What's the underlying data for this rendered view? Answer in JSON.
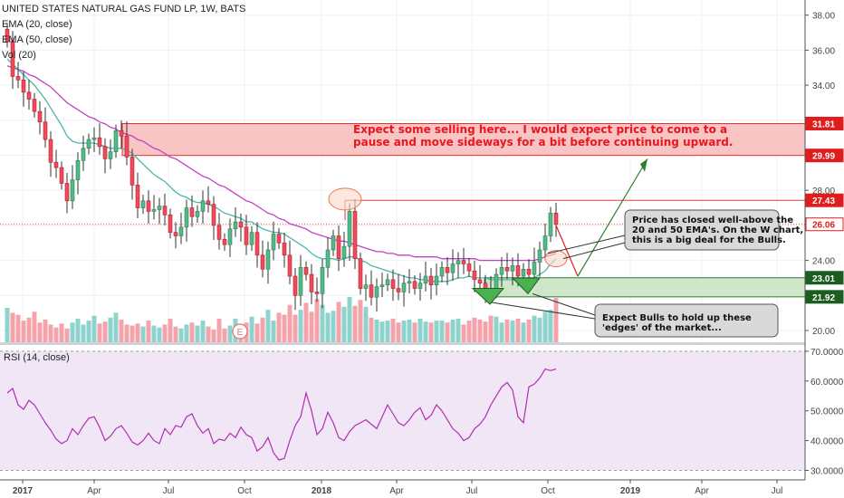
{
  "header": {
    "title": "UNITED STATES NATURAL GAS FUND LP, 1W, BATS",
    "ema20": "EMA (20, close)",
    "ema50": "EMA (50, close)",
    "vol": "Vol (20)"
  },
  "rsi_label": "RSI (14, close)",
  "annotations": {
    "selling_text_1": "Expect some selling here... I would expect price to come to a",
    "selling_text_2": "pause and move sideways for a bit before continuing upward.",
    "closed_text_1": "Price has closed well-above the",
    "closed_text_2": "20 and 50 EMA's. On the W chart,",
    "closed_text_3": "this is a big deal for the Bulls.",
    "bulls_text_1": "Expect Bulls to hold up these",
    "bulls_text_2": "'edges' of the market...",
    "earnings_marker": "E"
  },
  "colors": {
    "up": "#53b987",
    "down": "#eb4d5c",
    "ema20": "#4db6ac",
    "ema50": "#c542c6",
    "rsi_line": "#b02fb0",
    "rsi_bg": "#f1e6f6",
    "resistance_zone": "#f8c4c4",
    "support_zone": "#cfe6c9",
    "marker_red": "#e8161f"
  },
  "chart_data": [
    {
      "type": "candlestick",
      "title": "UNITED STATES NATURAL GAS FUND LP, 1W, BATS",
      "x_tick_labels": [
        "2017",
        "Apr",
        "Jul",
        "Oct",
        "2018",
        "Apr",
        "Jul",
        "Oct",
        "2019",
        "Apr",
        "Jul"
      ],
      "y_tick_labels": [
        "20.00",
        "22.00",
        "24.00",
        "26.00",
        "28.00",
        "30.00",
        "32.00",
        "34.00",
        "36.00",
        "38.00"
      ],
      "ylim": [
        19.3,
        38.6
      ],
      "price_labels": [
        {
          "value": 31.81,
          "label": "31.81"
        },
        {
          "value": 29.99,
          "label": "29.99"
        },
        {
          "value": 27.43,
          "label": "27.43"
        },
        {
          "value": 26.06,
          "label": "26.06"
        },
        {
          "value": 23.01,
          "label": "23.01"
        },
        {
          "value": 21.92,
          "label": "21.92"
        }
      ],
      "resistance_zone": [
        29.99,
        31.81
      ],
      "support_zone": [
        21.92,
        23.01
      ],
      "last_close": 26.06,
      "closes": [
        36.5,
        34.5,
        34.3,
        33.6,
        33.2,
        32.5,
        31.9,
        30.9,
        29.6,
        29.3,
        28.4,
        27.4,
        28.6,
        29.7,
        30.4,
        30.9,
        31.0,
        30.5,
        29.8,
        30.2,
        31.4,
        31.1,
        29.9,
        28.3,
        27.0,
        27.4,
        26.8,
        26.9,
        27.1,
        26.6,
        25.6,
        25.4,
        25.9,
        27.0,
        26.5,
        26.8,
        27.4,
        27.2,
        26.0,
        25.2,
        24.9,
        25.8,
        26.2,
        25.9,
        24.9,
        25.6,
        24.3,
        23.5,
        24.6,
        25.5,
        25.0,
        24.3,
        23.1,
        22.0,
        23.6,
        23.2,
        22.2,
        22.1,
        23.6,
        24.6,
        25.4,
        24.1,
        24.8,
        26.8,
        24.1,
        22.4,
        22.6,
        21.9,
        22.5,
        22.6,
        22.9,
        22.4,
        22.2,
        22.7,
        22.8,
        22.4,
        22.7,
        23.1,
        22.6,
        23.1,
        23.6,
        23.3,
        23.8,
        24.0,
        23.8,
        23.4,
        22.9,
        22.7,
        22.4,
        22.2,
        23.2,
        23.6,
        23.4,
        23.7,
        23.1,
        23.5,
        23.2,
        23.9,
        24.6,
        25.4,
        26.7,
        26.06
      ],
      "ema20": [
        35.5,
        35.2,
        34.9,
        34.6,
        34.3,
        34.0,
        33.6,
        33.2,
        32.7,
        32.2,
        31.7,
        31.1,
        30.8,
        30.7,
        30.7,
        30.7,
        30.7,
        30.6,
        30.5,
        30.4,
        30.4,
        30.4,
        30.3,
        30.1,
        29.8,
        29.5,
        29.2,
        28.9,
        28.7,
        28.5,
        28.2,
        27.9,
        27.7,
        27.6,
        27.4,
        27.3,
        27.3,
        27.2,
        27.1,
        26.9,
        26.7,
        26.6,
        26.5,
        26.4,
        26.2,
        26.2,
        26.0,
        25.8,
        25.7,
        25.6,
        25.6,
        25.5,
        25.3,
        25.1,
        24.9,
        24.7,
        24.4,
        24.2,
        24.1,
        24.1,
        24.1,
        24.0,
        24.1,
        24.2,
        24.2,
        24.0,
        23.9,
        23.7,
        23.6,
        23.5,
        23.4,
        23.3,
        23.2,
        23.1,
        23.0,
        23.0,
        22.9,
        22.9,
        22.8,
        22.8,
        22.8,
        22.8,
        22.9,
        23.0,
        23.0,
        23.1,
        23.0,
        23.0,
        23.0,
        22.9,
        22.9,
        22.9,
        22.9,
        22.9,
        22.9,
        23.0,
        23.0,
        23.0,
        23.2,
        23.4,
        23.8,
        24.1
      ],
      "ema50": [
        35.1,
        35.0,
        34.9,
        34.8,
        34.6,
        34.5,
        34.3,
        34.1,
        33.9,
        33.6,
        33.3,
        33.0,
        32.8,
        32.6,
        32.4,
        32.2,
        32.1,
        31.9,
        31.8,
        31.6,
        31.5,
        31.3,
        31.2,
        31.1,
        30.9,
        30.8,
        30.6,
        30.4,
        30.3,
        30.1,
        29.9,
        29.8,
        29.6,
        29.4,
        29.2,
        29.0,
        28.8,
        28.7,
        28.5,
        28.3,
        28.2,
        28.0,
        27.8,
        27.6,
        27.4,
        27.3,
        27.1,
        26.9,
        26.7,
        26.6,
        26.4,
        26.3,
        26.1,
        26.0,
        25.9,
        25.8,
        25.6,
        25.5,
        25.4,
        25.3,
        25.2,
        25.1,
        25.1,
        25.0,
        24.9,
        24.8,
        24.7,
        24.6,
        24.5,
        24.5,
        24.4,
        24.4,
        24.3,
        24.3,
        24.3,
        24.2,
        24.2,
        24.2,
        24.2,
        24.2,
        24.1,
        24.1,
        24.1,
        24.1,
        24.1,
        24.1,
        24.1,
        24.0,
        24.0,
        24.0,
        24.0,
        24.0,
        24.0,
        24.0,
        24.0,
        24.0,
        24.0,
        24.0,
        24.1,
        24.2,
        24.3,
        24.4
      ],
      "volume": [
        35,
        30,
        28,
        22,
        25,
        31,
        20,
        23,
        18,
        15,
        19,
        14,
        20,
        24,
        18,
        22,
        27,
        19,
        21,
        25,
        30,
        23,
        18,
        17,
        19,
        16,
        22,
        17,
        15,
        18,
        24,
        16,
        14,
        18,
        20,
        17,
        22,
        16,
        13,
        24,
        14,
        17,
        24,
        18,
        20,
        26,
        19,
        25,
        33,
        22,
        30,
        28,
        38,
        28,
        33,
        40,
        31,
        44,
        38,
        30,
        32,
        41,
        36,
        46,
        37,
        43,
        36,
        25,
        23,
        21,
        22,
        24,
        20,
        22,
        23,
        20,
        24,
        21,
        20,
        22,
        22,
        20,
        23,
        24,
        18,
        22,
        25,
        23,
        21,
        27,
        26,
        20,
        23,
        22,
        24,
        20,
        23,
        27,
        25,
        31,
        33,
        45
      ]
    },
    {
      "type": "line",
      "title": "RSI (14, close)",
      "y_tick_labels": [
        "30.0000",
        "40.0000",
        "50.0000",
        "60.0000",
        "70.0000"
      ],
      "ylim": [
        29,
        71
      ],
      "values": [
        56.0,
        57.5,
        52.0,
        50.5,
        53.5,
        52.0,
        49.0,
        46.0,
        43.5,
        40.5,
        39.0,
        40.0,
        44.0,
        42.0,
        45.0,
        47.5,
        48.0,
        44.5,
        40.0,
        41.5,
        44.0,
        45.0,
        42.5,
        39.5,
        38.5,
        40.0,
        42.5,
        40.0,
        39.0,
        44.0,
        42.0,
        45.0,
        44.5,
        48.0,
        49.0,
        45.0,
        42.5,
        44.0,
        39.0,
        40.5,
        40.0,
        42.5,
        41.0,
        44.5,
        42.0,
        41.0,
        36.5,
        38.0,
        41.0,
        36.0,
        33.5,
        34.0,
        40.0,
        45.0,
        48.0,
        56.0,
        50.0,
        42.0,
        44.0,
        49.5,
        46.0,
        41.0,
        40.0,
        43.0,
        45.0,
        46.0,
        47.0,
        45.5,
        44.0,
        48.0,
        52.0,
        49.0,
        46.0,
        45.0,
        47.0,
        49.5,
        51.0,
        47.0,
        48.5,
        52.0,
        50.0,
        47.0,
        44.0,
        42.5,
        40.0,
        41.0,
        44.0,
        45.5,
        48.0,
        52.0,
        55.0,
        58.0,
        59.5,
        57.0,
        48.0,
        46.0,
        58.0,
        59.0,
        61.0,
        64.0,
        63.5,
        64.0
      ]
    }
  ]
}
